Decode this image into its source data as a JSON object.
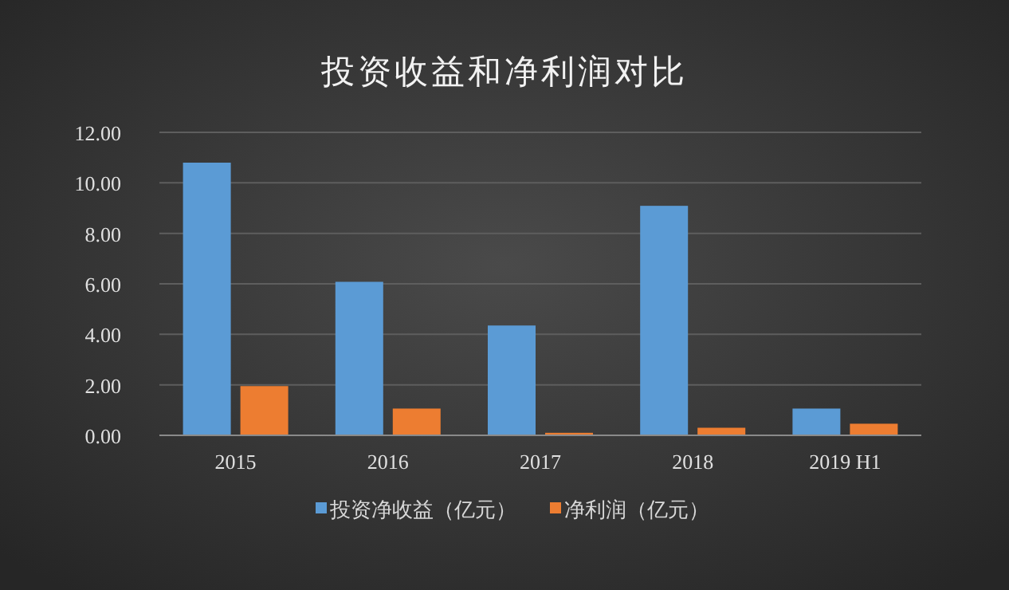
{
  "chart_data": {
    "type": "bar",
    "title": "投资收益和净利润对比",
    "categories": [
      "2015",
      "2016",
      "2017",
      "2018",
      "2019 H1"
    ],
    "series": [
      {
        "name": "投资净收益（亿元）",
        "color": "#5b9bd5",
        "values": [
          10.8,
          6.08,
          4.35,
          9.09,
          1.06
        ]
      },
      {
        "name": "净利润（亿元）",
        "color": "#ed7d31",
        "values": [
          1.95,
          1.06,
          0.1,
          0.3,
          0.46
        ]
      }
    ],
    "ylim": [
      0,
      12
    ],
    "yticks": [
      {
        "value": 0,
        "label": "0.00"
      },
      {
        "value": 2,
        "label": "2.00"
      },
      {
        "value": 4,
        "label": "4.00"
      },
      {
        "value": 6,
        "label": "6.00"
      },
      {
        "value": 8,
        "label": "8.00"
      },
      {
        "value": 10,
        "label": "10.00"
      },
      {
        "value": 12,
        "label": "12.00"
      }
    ],
    "grid": "y",
    "legend": "bottom"
  }
}
